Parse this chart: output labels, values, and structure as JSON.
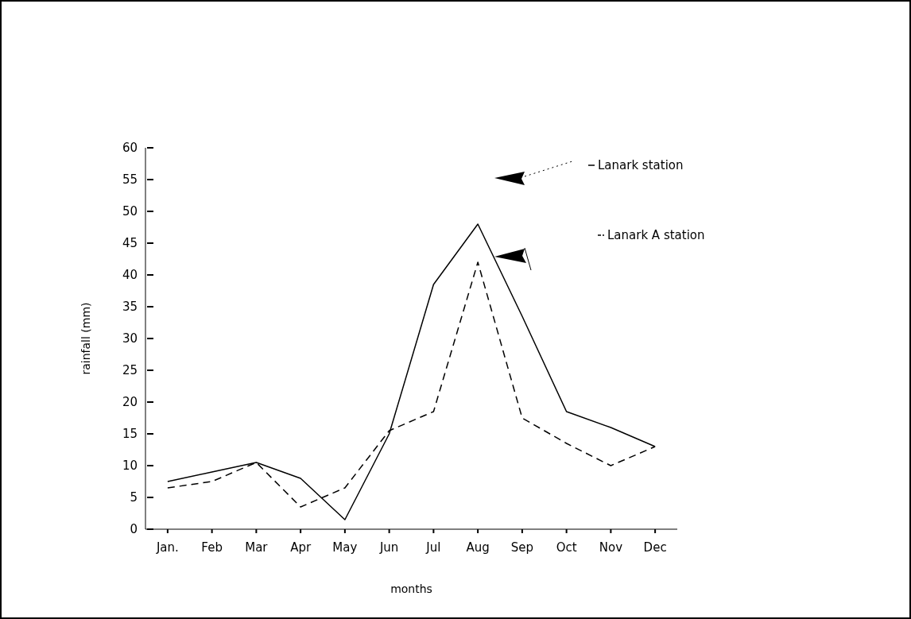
{
  "chart_data": {
    "type": "line",
    "xlabel": "months",
    "ylabel": "rainfall (mm)",
    "categories": [
      "Jan.",
      "Feb",
      "Mar",
      "Apr",
      "May",
      "Jun",
      "Jul",
      "Aug",
      "Sep",
      "Oct",
      "Nov",
      "Dec"
    ],
    "series": [
      {
        "name": "Lanark station",
        "color": "#000000",
        "line_style": "solid",
        "values": [
          7.5,
          9,
          10.5,
          8,
          1.5,
          15,
          38.5,
          48,
          33.5,
          18.5,
          16,
          13
        ]
      },
      {
        "name": "Lanark A station",
        "color": "#000000",
        "line_style": "dashed",
        "values": [
          6.5,
          7.5,
          10.5,
          3.5,
          6.5,
          15.5,
          18.5,
          42,
          17.5,
          13.5,
          10,
          13
        ]
      }
    ],
    "ylim": [
      0,
      60
    ],
    "yticks": [
      0,
      5,
      10,
      15,
      20,
      25,
      30,
      35,
      40,
      45,
      50,
      55,
      60
    ],
    "grid": false,
    "legend": "top right",
    "marker": "none"
  }
}
